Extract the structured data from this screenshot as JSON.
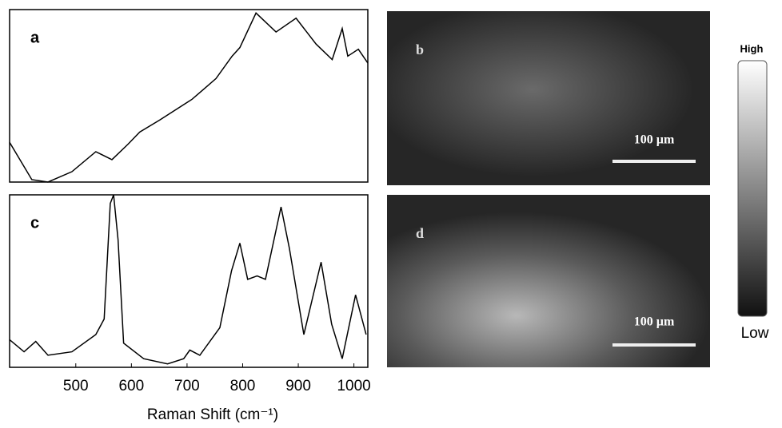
{
  "chart_data": [
    {
      "type": "line",
      "panel_label": "a",
      "xlim": [
        381,
        1025
      ],
      "ylim": [
        0,
        100
      ],
      "x": [
        381,
        421,
        450,
        493,
        536,
        565,
        594,
        615,
        651,
        709,
        752,
        781,
        795,
        824,
        860,
        896,
        932,
        961,
        979,
        989,
        1008,
        1025
      ],
      "series": [
        {
          "color": "#000000",
          "values": [
            23,
            1.4,
            0,
            6,
            17.6,
            13,
            22,
            29,
            36,
            48,
            60,
            73,
            78,
            98,
            87,
            95,
            80,
            71,
            89,
            73,
            77,
            69
          ]
        }
      ]
    },
    {
      "type": "line",
      "panel_label": "c",
      "xlim": [
        381,
        1025
      ],
      "ylim": [
        0,
        100
      ],
      "x_label": "Raman Shift (cm⁻¹)",
      "xticks": [
        500,
        600,
        700,
        800,
        900,
        1000
      ],
      "x": [
        381,
        407,
        428,
        450,
        493,
        536,
        551,
        562,
        568,
        576,
        586,
        622,
        665,
        694,
        705,
        723,
        759,
        780,
        795,
        809,
        826,
        841,
        869,
        884,
        910,
        941,
        960,
        979,
        1003,
        1022
      ],
      "series": [
        {
          "color": "#000000",
          "values": [
            16,
            9,
            15,
            7,
            9,
            19,
            28,
            95,
            100,
            74,
            14,
            5,
            2,
            5,
            10,
            7,
            23,
            56,
            72,
            51,
            53,
            51,
            93,
            69,
            19,
            61,
            25,
            5,
            42,
            19
          ]
        }
      ]
    }
  ],
  "images": [
    {
      "label": "b",
      "scale_bar": "100 µm"
    },
    {
      "label": "d",
      "scale_bar": "100 µm"
    }
  ],
  "colorbar": {
    "high": "High",
    "low": "Low"
  }
}
